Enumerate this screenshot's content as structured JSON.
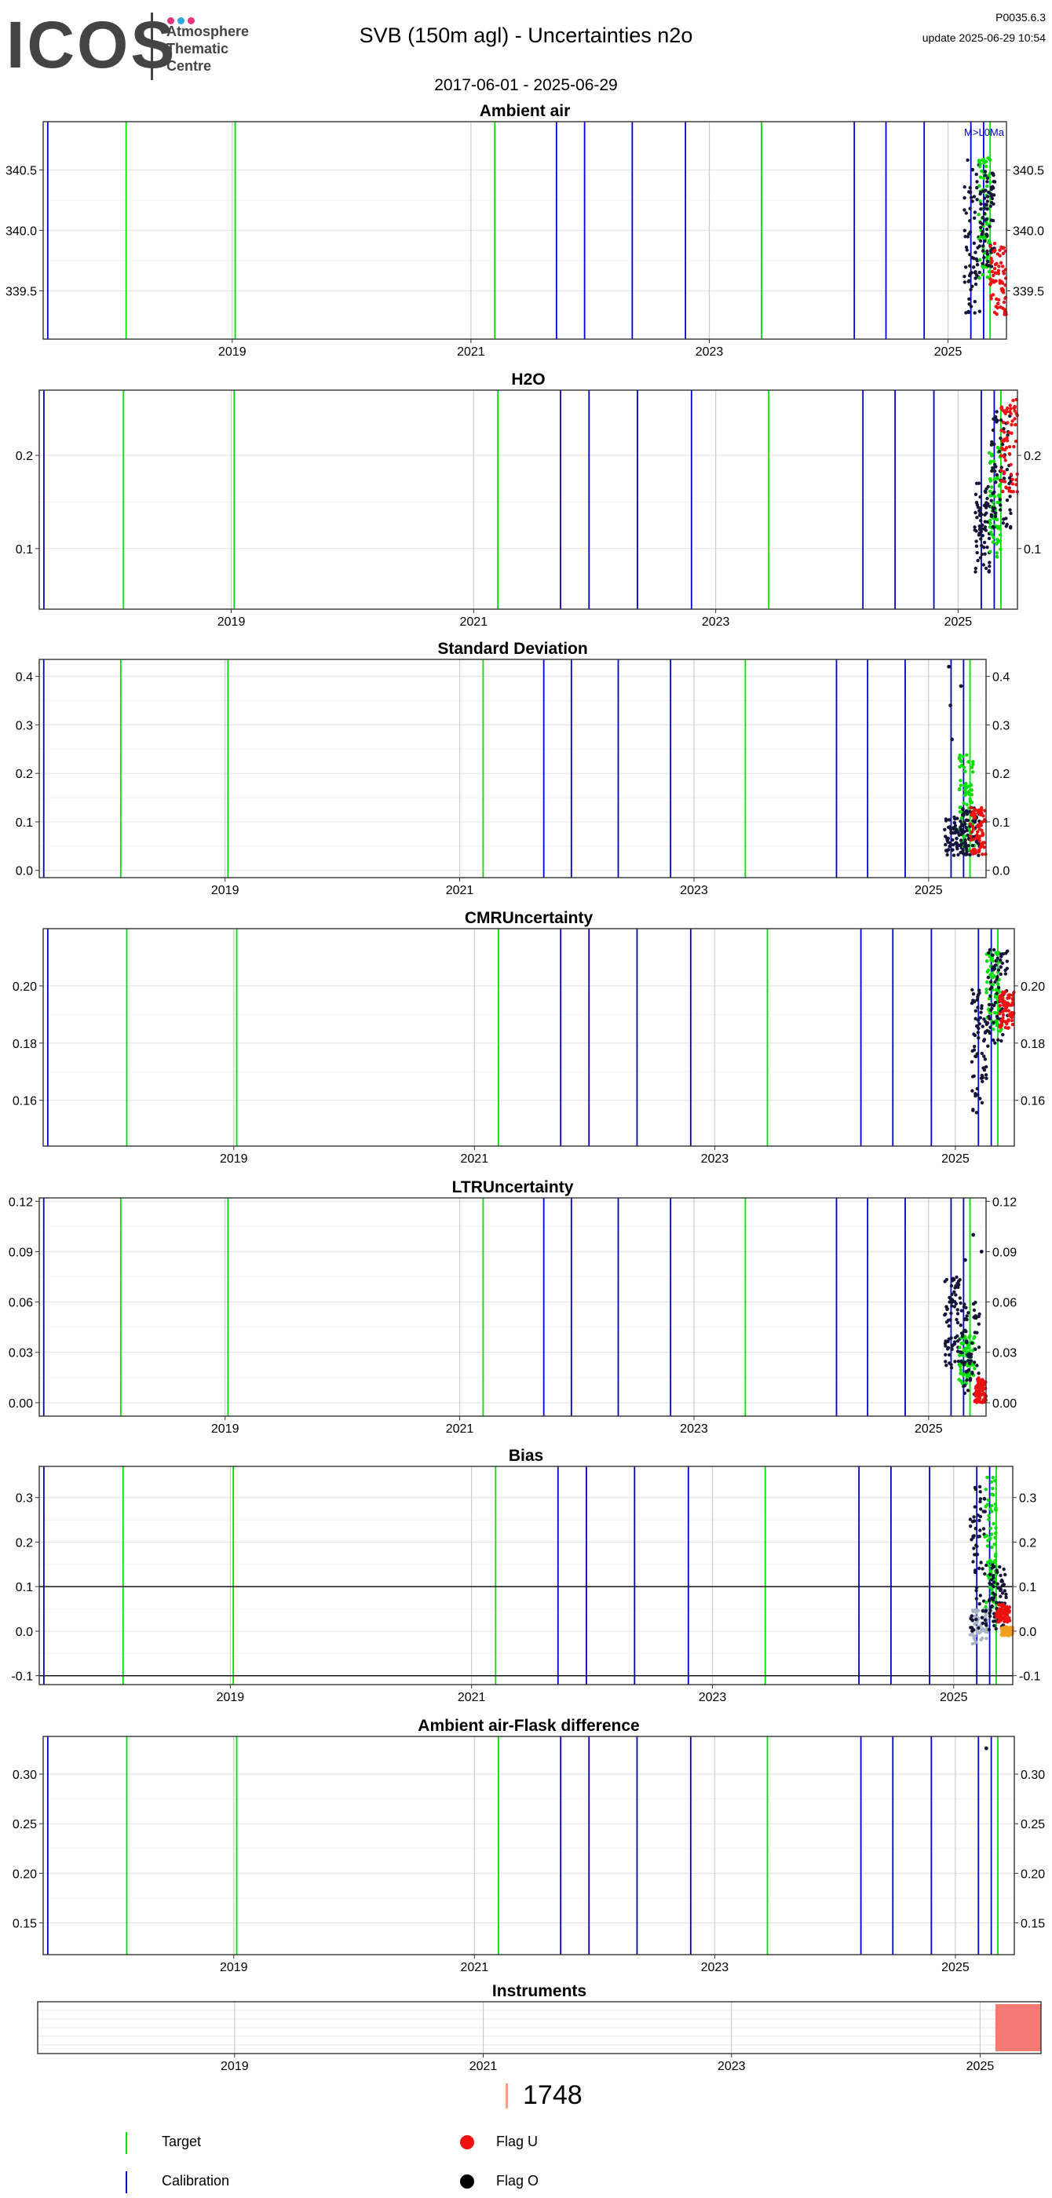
{
  "logo": {
    "word": "ICOS",
    "lines": [
      "Atmosphere",
      "Thematic",
      "Centre"
    ],
    "dot_colors": [
      "#e6337f",
      "#2ca5e0",
      "#e6337f"
    ]
  },
  "header": {
    "title": "SVB  (150m agl) - Uncertainties n2o",
    "date_range": "2017-06-01 - 2025-06-29",
    "version": "P0035.6.3",
    "update": "update  2025-06-29 10:54"
  },
  "colors": {
    "target": "#00e000",
    "calibration": "#0000cc",
    "flag_u": "#ee1111",
    "flag_o": "#000000",
    "data_dark": "#15153a",
    "grid": "#e6e6e6",
    "year_grid": "#cccccc",
    "orange": "#f0a020",
    "grey_bias": "#a6b4c4",
    "instrument": "#f47b72",
    "count_bar": "#f2a07e"
  },
  "chart_data": [
    {
      "type": "scatter",
      "title": "Ambient air",
      "xlim": [
        "2017-06-01",
        "2025-06-29"
      ],
      "ylim": [
        339.1,
        340.9
      ],
      "yticks": [
        339.5,
        340.0,
        340.5
      ],
      "ytick_labels": [
        "339.5",
        "340.0",
        "340.5"
      ],
      "x_tick_labels": [
        "2019",
        "2021",
        "2023",
        "2025"
      ],
      "annotation": "M>L0Ma",
      "clusters": [
        {
          "color": "dark",
          "x": [
            "2025-02-20",
            "2025-04-10"
          ],
          "y": [
            339.3,
            340.6
          ]
        },
        {
          "color": "target",
          "x": [
            "2025-04-05",
            "2025-05-10"
          ],
          "y": [
            339.6,
            340.6
          ]
        },
        {
          "color": "black",
          "x": [
            "2025-04-10",
            "2025-05-25"
          ],
          "y": [
            339.7,
            340.5
          ]
        },
        {
          "color": "flag_u",
          "x": [
            "2025-05-10",
            "2025-06-29"
          ],
          "y": [
            339.3,
            339.9
          ]
        }
      ]
    },
    {
      "type": "scatter",
      "title": "H2O",
      "xlim": [
        "2017-06-01",
        "2025-06-29"
      ],
      "ylim": [
        0.035,
        0.27
      ],
      "yticks": [
        0.1,
        0.2
      ],
      "ytick_labels": [
        "0.1",
        "0.2"
      ],
      "x_tick_labels": [
        "2019",
        "2021",
        "2023",
        "2025"
      ],
      "clusters": [
        {
          "color": "dark",
          "x": [
            "2025-02-20",
            "2025-04-10"
          ],
          "y": [
            0.07,
            0.17
          ]
        },
        {
          "color": "target",
          "x": [
            "2025-04-05",
            "2025-05-10"
          ],
          "y": [
            0.09,
            0.21
          ]
        },
        {
          "color": "black",
          "x": [
            "2025-04-10",
            "2025-06-10"
          ],
          "y": [
            0.12,
            0.25
          ]
        },
        {
          "color": "flag_u",
          "x": [
            "2025-05-10",
            "2025-06-29"
          ],
          "y": [
            0.16,
            0.26
          ]
        }
      ]
    },
    {
      "type": "scatter",
      "title": "Standard Deviation",
      "xlim": [
        "2017-06-01",
        "2025-06-29"
      ],
      "ylim": [
        -0.015,
        0.435
      ],
      "yticks": [
        0.0,
        0.1,
        0.2,
        0.3,
        0.4
      ],
      "ytick_labels": [
        "0.0",
        "0.1",
        "0.2",
        "0.3",
        "0.4"
      ],
      "x_tick_labels": [
        "2019",
        "2021",
        "2023",
        "2025"
      ],
      "clusters": [
        {
          "color": "dark",
          "x": [
            "2025-02-20",
            "2025-04-30"
          ],
          "y": [
            0.03,
            0.11
          ]
        },
        {
          "color": "target",
          "x": [
            "2025-04-05",
            "2025-05-25"
          ],
          "y": [
            0.04,
            0.24
          ]
        },
        {
          "color": "black",
          "x": [
            "2025-04-10",
            "2025-06-10"
          ],
          "y": [
            0.03,
            0.13
          ]
        },
        {
          "color": "flag_u",
          "x": [
            "2025-05-10",
            "2025-06-29"
          ],
          "y": [
            0.03,
            0.13
          ]
        }
      ],
      "outliers": [
        {
          "color": "dark",
          "x": "2025-03-05",
          "y": 0.42
        },
        {
          "color": "dark",
          "x": "2025-03-10",
          "y": 0.34
        },
        {
          "color": "dark",
          "x": "2025-03-15",
          "y": 0.27
        },
        {
          "color": "dark",
          "x": "2025-04-12",
          "y": 0.38
        }
      ]
    },
    {
      "type": "scatter",
      "title": "CMRUncertainty",
      "xlim": [
        "2017-06-01",
        "2025-06-29"
      ],
      "ylim": [
        0.144,
        0.22
      ],
      "yticks": [
        0.16,
        0.18,
        0.2
      ],
      "ytick_labels": [
        "0.16",
        "0.18",
        "0.20"
      ],
      "x_tick_labels": [
        "2019",
        "2021",
        "2023",
        "2025"
      ],
      "clusters": [
        {
          "color": "dark",
          "x": [
            "2025-02-20",
            "2025-04-10"
          ],
          "y": [
            0.155,
            0.2
          ]
        },
        {
          "color": "target",
          "x": [
            "2025-04-05",
            "2025-05-25"
          ],
          "y": [
            0.182,
            0.212
          ]
        },
        {
          "color": "black",
          "x": [
            "2025-04-10",
            "2025-06-10"
          ],
          "y": [
            0.18,
            0.213
          ]
        },
        {
          "color": "flag_u",
          "x": [
            "2025-05-15",
            "2025-06-29"
          ],
          "y": [
            0.185,
            0.198
          ]
        }
      ]
    },
    {
      "type": "scatter",
      "title": "LTRUncertainty",
      "xlim": [
        "2017-06-01",
        "2025-06-29"
      ],
      "ylim": [
        -0.008,
        0.122
      ],
      "yticks": [
        0.0,
        0.03,
        0.06,
        0.09,
        0.12
      ],
      "ytick_labels": [
        "0.00",
        "0.03",
        "0.06",
        "0.09",
        "0.12"
      ],
      "x_tick_labels": [
        "2019",
        "2021",
        "2023",
        "2025"
      ],
      "clusters": [
        {
          "color": "dark",
          "x": [
            "2025-02-20",
            "2025-04-10"
          ],
          "y": [
            0.02,
            0.075
          ]
        },
        {
          "color": "target",
          "x": [
            "2025-04-05",
            "2025-05-25"
          ],
          "y": [
            0.01,
            0.04
          ]
        },
        {
          "color": "black",
          "x": [
            "2025-04-10",
            "2025-06-10"
          ],
          "y": [
            0.005,
            0.06
          ]
        },
        {
          "color": "flag_u",
          "x": [
            "2025-05-25",
            "2025-06-29"
          ],
          "y": [
            0.0,
            0.015
          ]
        }
      ],
      "outliers": [
        {
          "color": "black",
          "x": "2025-05-20",
          "y": 0.1
        },
        {
          "color": "black",
          "x": "2025-04-25",
          "y": 0.085
        },
        {
          "color": "black",
          "x": "2025-06-15",
          "y": 0.09
        }
      ]
    },
    {
      "type": "scatter",
      "title": "Bias",
      "xlim": [
        "2017-06-01",
        "2025-06-29"
      ],
      "ylim": [
        -0.12,
        0.37
      ],
      "yticks": [
        -0.1,
        0.0,
        0.1,
        0.2,
        0.3
      ],
      "ytick_labels": [
        "-0.1",
        "0.0",
        "0.1",
        "0.2",
        "0.3"
      ],
      "x_tick_labels": [
        "2019",
        "2021",
        "2023",
        "2025"
      ],
      "hlines": [
        0.1,
        -0.1
      ],
      "clusters": [
        {
          "color": "grey_bias",
          "x": [
            "2025-02-20",
            "2025-04-15"
          ],
          "y": [
            -0.03,
            0.05
          ]
        },
        {
          "color": "dark",
          "x": [
            "2025-02-20",
            "2025-04-10"
          ],
          "y": [
            0.0,
            0.33
          ]
        },
        {
          "color": "target",
          "x": [
            "2025-04-05",
            "2025-05-10"
          ],
          "y": [
            0.05,
            0.35
          ]
        },
        {
          "color": "black",
          "x": [
            "2025-04-15",
            "2025-06-10"
          ],
          "y": [
            0.0,
            0.15
          ]
        },
        {
          "color": "flag_u",
          "x": [
            "2025-05-10",
            "2025-06-20"
          ],
          "y": [
            0.02,
            0.06
          ]
        },
        {
          "color": "orange",
          "x": [
            "2025-05-25",
            "2025-06-29"
          ],
          "y": [
            -0.01,
            0.01
          ]
        }
      ]
    },
    {
      "type": "scatter",
      "title": "Ambient air-Flask difference",
      "xlim": [
        "2017-06-01",
        "2025-06-29"
      ],
      "ylim": [
        0.118,
        0.338
      ],
      "yticks": [
        0.15,
        0.2,
        0.25,
        0.3
      ],
      "ytick_labels": [
        "0.15",
        "0.20",
        "0.25",
        "0.30"
      ],
      "x_tick_labels": [
        "2019",
        "2021",
        "2023",
        "2025"
      ],
      "outliers": [
        {
          "color": "dark",
          "x": "2025-04-05",
          "y": 0.326
        }
      ]
    },
    {
      "type": "bar",
      "title": "Instruments",
      "xlim": [
        "2017-06-01",
        "2025-06-29"
      ],
      "x_tick_labels": [
        "2019",
        "2021",
        "2023",
        "2025"
      ],
      "bars": [
        {
          "label": "1748",
          "x": [
            "2025-02-15",
            "2025-06-29"
          ]
        }
      ]
    }
  ],
  "markers": {
    "calibration": [
      "2017-06-15",
      "2021-09-20",
      "2021-12-15",
      "2022-05-10",
      "2022-10-20",
      "2024-03-20",
      "2024-06-25",
      "2024-10-20",
      "2025-03-12",
      "2025-04-20"
    ],
    "target": [
      "2018-02-10",
      "2019-01-10",
      "2021-03-15",
      "2023-06-10",
      "2025-05-10"
    ]
  },
  "legend": {
    "count": "1748",
    "items": [
      {
        "type": "line",
        "color": "target",
        "label": "Target"
      },
      {
        "type": "dot",
        "color": "flag_u",
        "label": "Flag U"
      },
      {
        "type": "line",
        "color": "calibration",
        "label": "Calibration"
      },
      {
        "type": "dot",
        "color": "flag_o",
        "label": "Flag O"
      }
    ]
  }
}
